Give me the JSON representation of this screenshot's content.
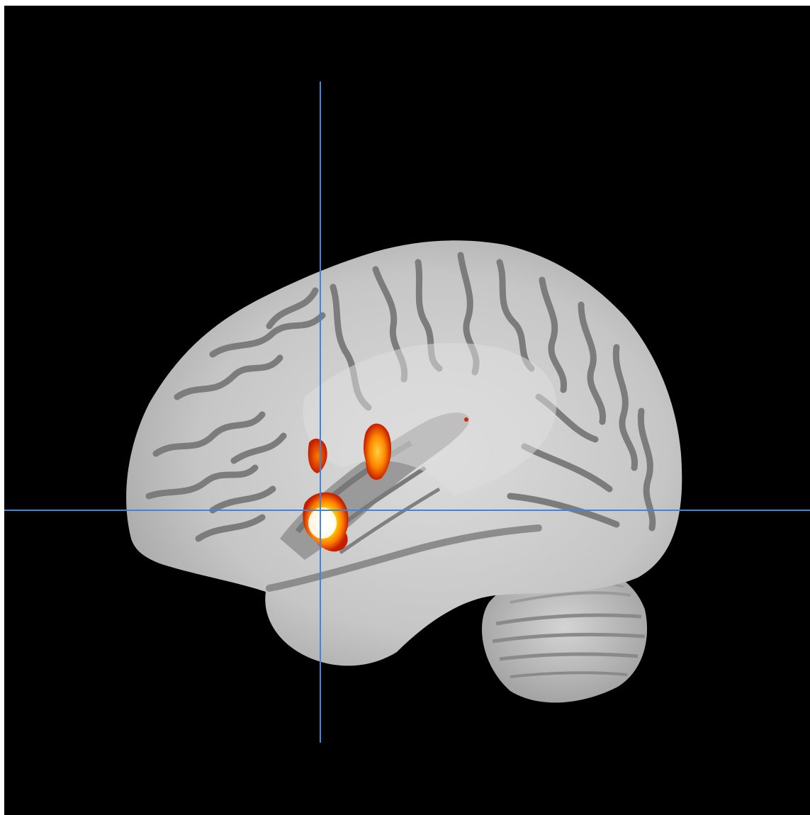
{
  "view": {
    "orientation": "sagittal",
    "background_color": "#000000",
    "crosshair_color": "#3a86e0"
  },
  "overlay": {
    "colormap": "hot",
    "low_color": "#c41e00",
    "mid_color": "#ff7a00",
    "high_color": "#ffffff"
  },
  "anatomy": {
    "colormap": "grayscale",
    "cortex_color": "#c8c8c8",
    "sulcus_color": "#7c7c7c",
    "white_matter_color": "#dedede"
  }
}
